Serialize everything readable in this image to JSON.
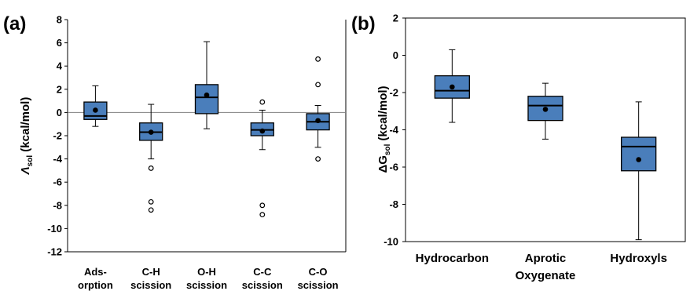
{
  "chart_data": [
    {
      "panel_label": "(a)",
      "type": "box",
      "ylabel_main": "Λ",
      "ylabel_sub": "sol",
      "ylabel_unit": " (kcal/mol)",
      "ylim": [
        -12,
        8
      ],
      "yticks": [
        8,
        6,
        4,
        2,
        0,
        -2,
        -4,
        -6,
        -8,
        -10,
        -12
      ],
      "zero_line": true,
      "categories": [
        [
          "Ads-",
          "orption"
        ],
        [
          "C-H",
          "scission"
        ],
        [
          "O-H",
          "scission"
        ],
        [
          "C-C",
          "scission"
        ],
        [
          "C-O",
          "scission"
        ]
      ],
      "series": [
        {
          "whisker_low": -1.2,
          "q1": -0.6,
          "median": -0.3,
          "q3": 0.9,
          "whisker_high": 2.3,
          "mean": 0.2,
          "outliers": []
        },
        {
          "whisker_low": -4.0,
          "q1": -2.4,
          "median": -1.7,
          "q3": -0.9,
          "whisker_high": 0.7,
          "mean": -1.7,
          "outliers": [
            -4.8,
            -7.7,
            -8.4
          ]
        },
        {
          "whisker_low": -1.4,
          "q1": -0.1,
          "median": 1.3,
          "q3": 2.4,
          "whisker_high": 6.1,
          "mean": 1.5,
          "outliers": []
        },
        {
          "whisker_low": -3.2,
          "q1": -2.0,
          "median": -1.5,
          "q3": -0.9,
          "whisker_high": 0.2,
          "mean": -1.6,
          "outliers": [
            0.9,
            -8.0,
            -8.8
          ]
        },
        {
          "whisker_low": -3.0,
          "q1": -1.5,
          "median": -0.8,
          "q3": -0.1,
          "whisker_high": 0.6,
          "mean": -0.7,
          "outliers": [
            4.6,
            2.4,
            -4.0
          ]
        }
      ]
    },
    {
      "panel_label": "(b)",
      "type": "box",
      "ylabel_main": "ΔG",
      "ylabel_sub": "sol",
      "ylabel_unit": " (kcal/mol)",
      "ylim": [
        -10,
        2
      ],
      "yticks": [
        2,
        0,
        -2,
        -4,
        -6,
        -8,
        -10
      ],
      "zero_line": false,
      "categories": [
        [
          "Hydrocarbon"
        ],
        [
          "Aprotic",
          "Oxygenate"
        ],
        [
          "Hydroxyls"
        ]
      ],
      "series": [
        {
          "whisker_low": -3.6,
          "q1": -2.3,
          "median": -1.9,
          "q3": -1.1,
          "whisker_high": 0.3,
          "mean": -1.7,
          "outliers": []
        },
        {
          "whisker_low": -4.5,
          "q1": -3.5,
          "median": -2.7,
          "q3": -2.2,
          "whisker_high": -1.5,
          "mean": -2.9,
          "outliers": []
        },
        {
          "whisker_low": -9.9,
          "q1": -6.2,
          "median": -4.9,
          "q3": -4.4,
          "whisker_high": -2.5,
          "mean": -5.6,
          "outliers": []
        }
      ]
    }
  ],
  "style": {
    "box_fill": "#4a7ebb",
    "box_stroke": "#000000",
    "axis_color": "#000000",
    "zero_line_color": "#7f7f7f"
  }
}
